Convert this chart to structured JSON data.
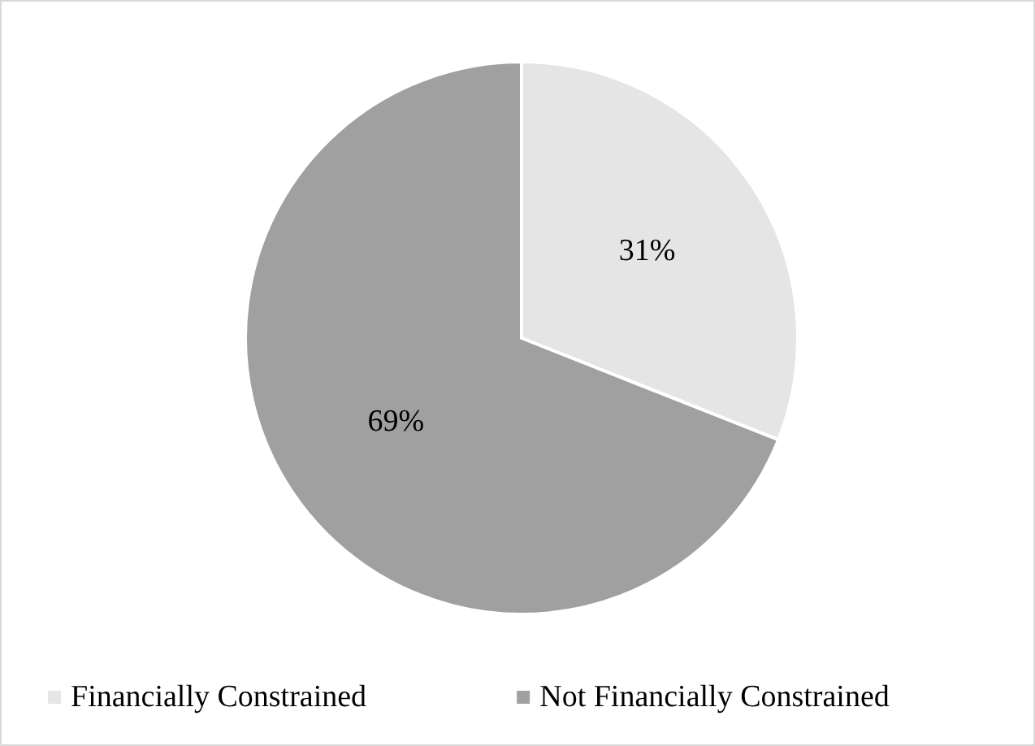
{
  "chart_data": {
    "type": "pie",
    "categories": [
      "Financially Constrained",
      "Not Financially Constrained"
    ],
    "values": [
      31,
      69
    ],
    "colors": [
      "#e5e5e5",
      "#a0a0a0"
    ],
    "value_labels": [
      "31%",
      "69%"
    ],
    "legend": "bottom"
  }
}
